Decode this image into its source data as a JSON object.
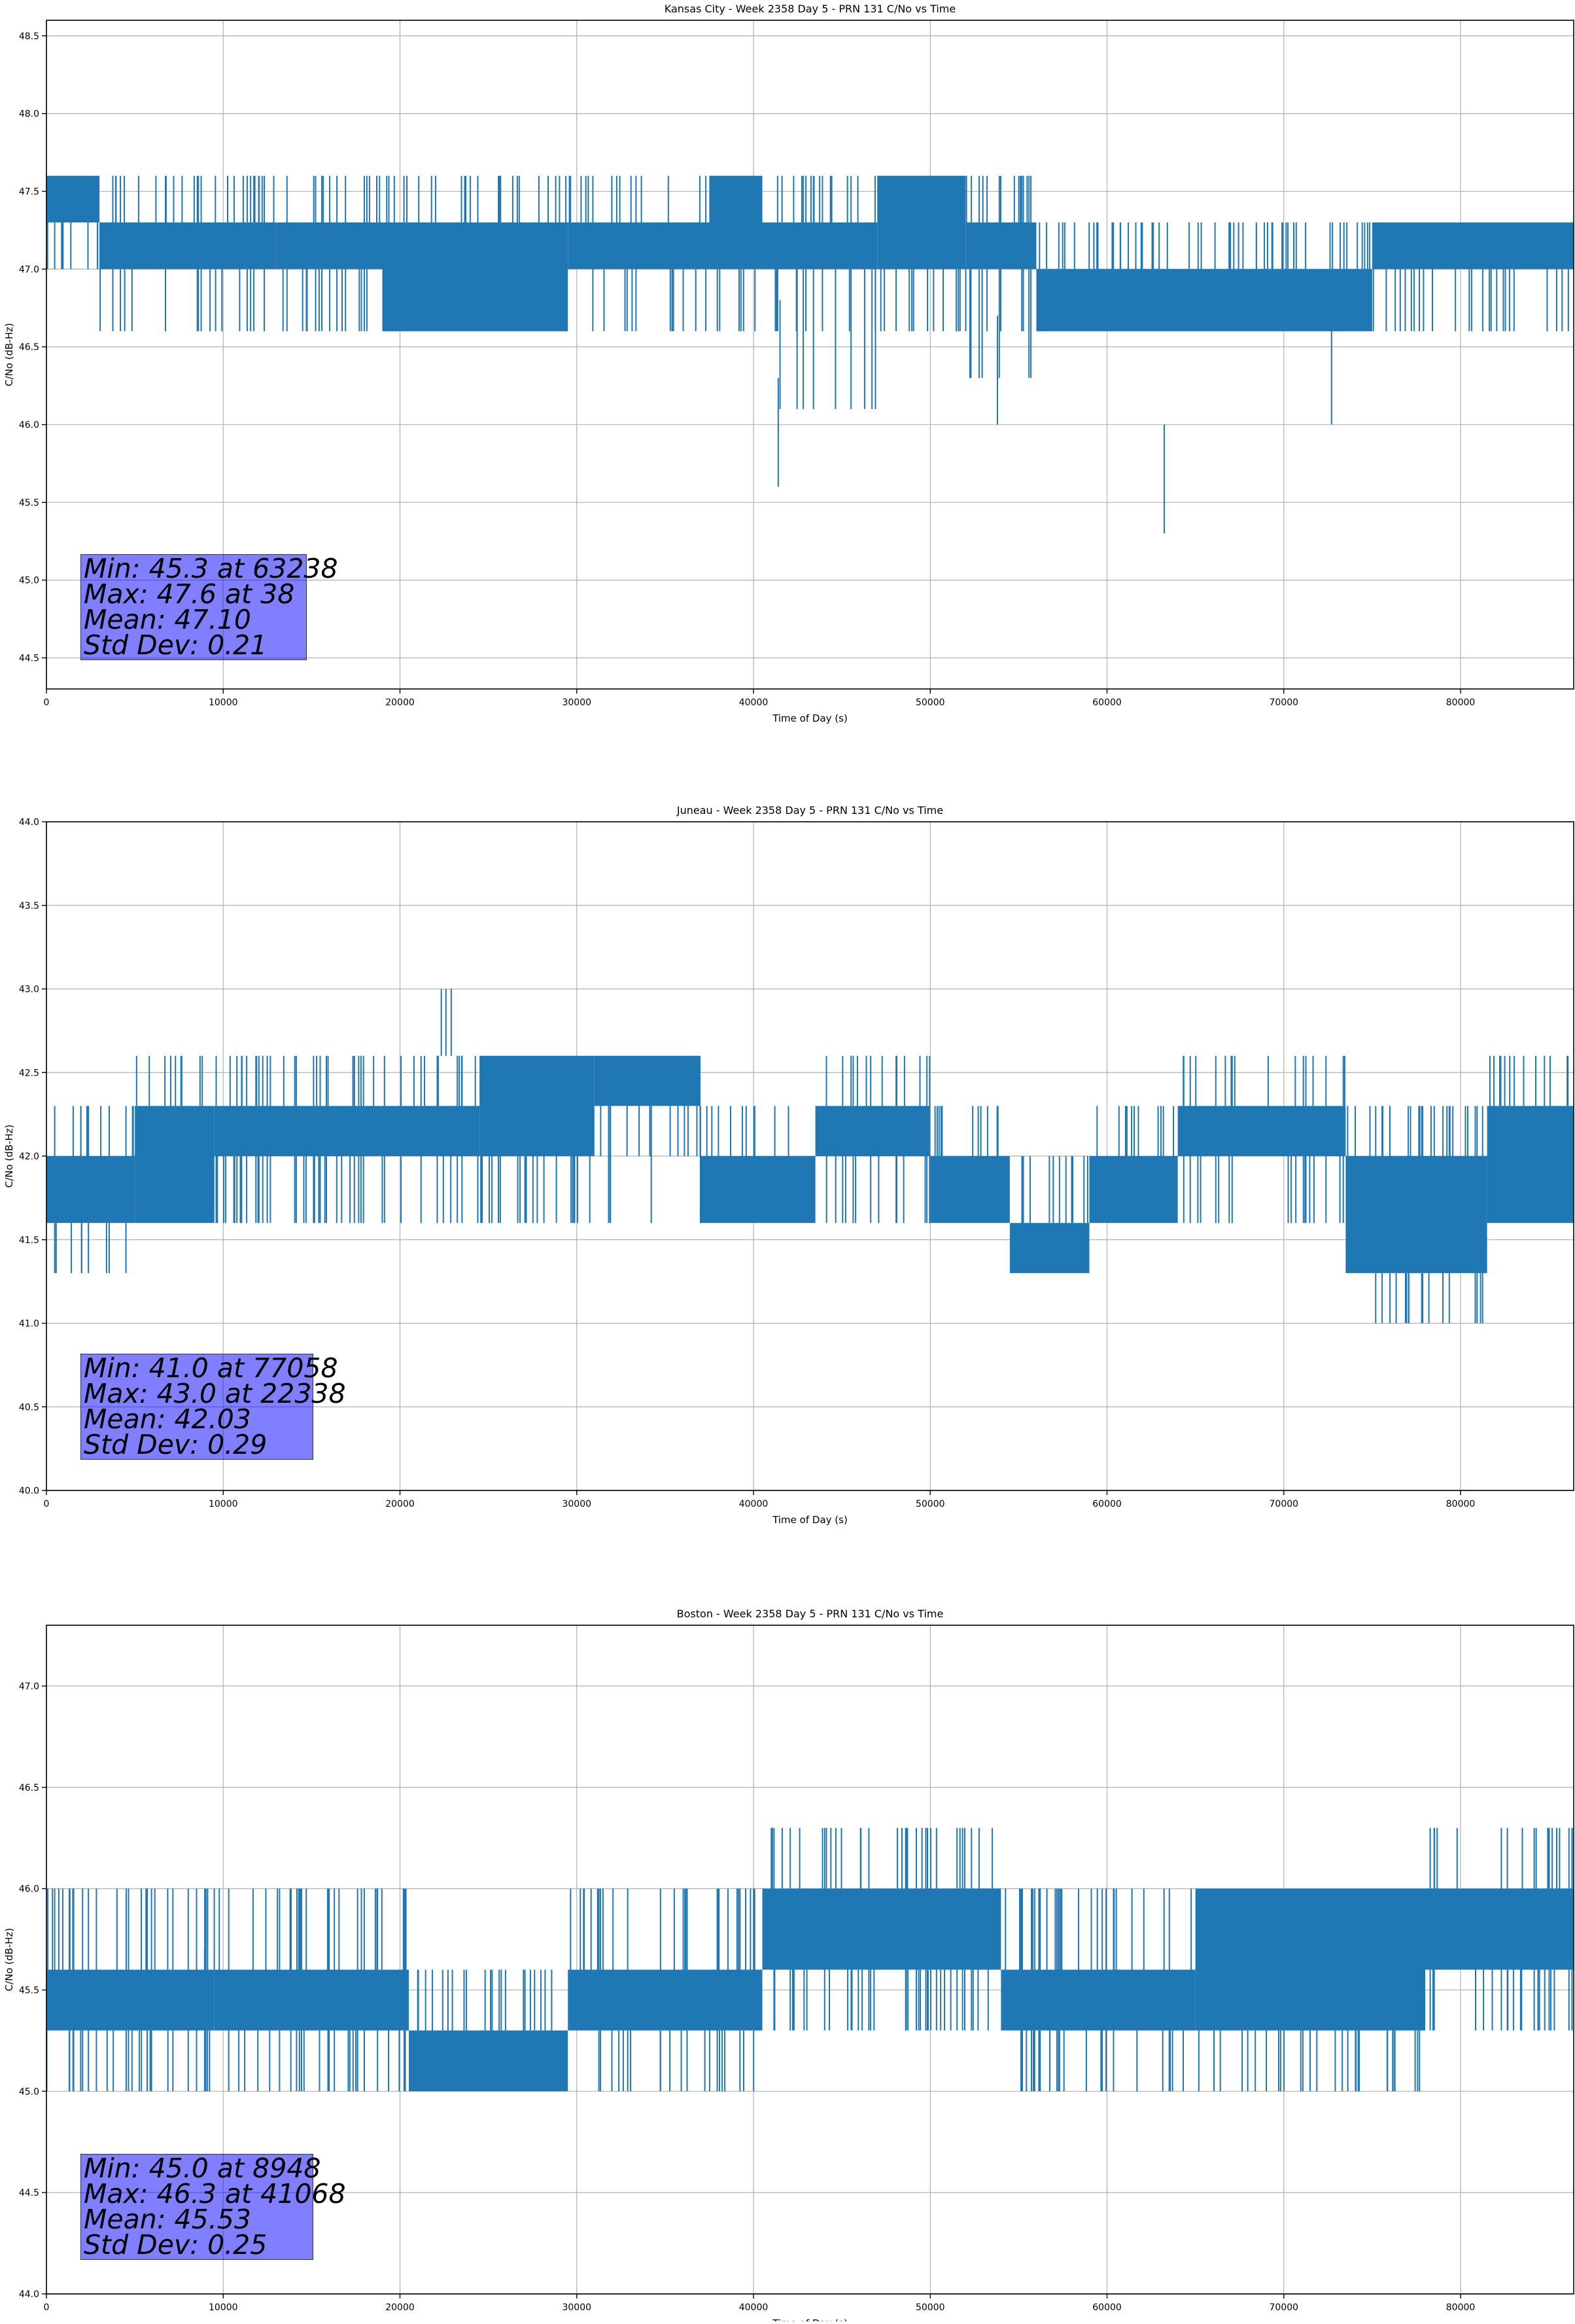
{
  "chart_data": [
    {
      "type": "line",
      "title": "Kansas City - Week 2358 Day 5 - PRN 131 C/No vs Time",
      "xlabel": "Time of Day (s)",
      "ylabel": "C/No (dB-Hz)",
      "xlim": [
        0,
        86400
      ],
      "ylim": [
        44.3,
        48.6
      ],
      "xticks": [
        0,
        10000,
        20000,
        30000,
        40000,
        50000,
        60000,
        70000,
        80000
      ],
      "yticks": [
        44.5,
        45.0,
        45.5,
        46.0,
        46.5,
        47.0,
        47.5,
        48.0,
        48.5
      ],
      "ytick_labels": [
        "44.5",
        "45.0",
        "45.5",
        "46.0",
        "46.5",
        "47.0",
        "47.5",
        "48.0",
        "48.5"
      ],
      "grid": true,
      "line_color": "#1f77b4",
      "quantum": 0.3,
      "segments": [
        {
          "x0": 0,
          "x1": 3000,
          "low": 47.3,
          "high": 47.6,
          "down": [
            47.0
          ],
          "up": []
        },
        {
          "x0": 3000,
          "x1": 13000,
          "low": 47.0,
          "high": 47.3,
          "down": [
            46.6
          ],
          "up": [
            47.6
          ]
        },
        {
          "x0": 13000,
          "x1": 19000,
          "low": 47.0,
          "high": 47.3,
          "down": [
            46.6
          ],
          "up": [
            47.6
          ]
        },
        {
          "x0": 19000,
          "x1": 29500,
          "low": 46.6,
          "high": 47.3,
          "down": [],
          "up": [
            47.6
          ]
        },
        {
          "x0": 29500,
          "x1": 37500,
          "low": 47.0,
          "high": 47.3,
          "down": [
            46.6
          ],
          "up": [
            47.6
          ]
        },
        {
          "x0": 37500,
          "x1": 40500,
          "low": 47.0,
          "high": 47.6,
          "down": [
            46.6
          ],
          "up": []
        },
        {
          "x0": 40500,
          "x1": 47000,
          "low": 47.0,
          "high": 47.3,
          "down": [
            46.6,
            46.1
          ],
          "up": [
            47.6
          ]
        },
        {
          "x0": 47000,
          "x1": 52000,
          "low": 47.0,
          "high": 47.6,
          "down": [
            46.6
          ],
          "up": []
        },
        {
          "x0": 52000,
          "x1": 56000,
          "low": 47.0,
          "high": 47.3,
          "down": [
            46.3,
            46.6
          ],
          "up": [
            47.6
          ]
        },
        {
          "x0": 56000,
          "x1": 75000,
          "low": 46.6,
          "high": 47.0,
          "down": [],
          "up": [
            47.3
          ]
        },
        {
          "x0": 75000,
          "x1": 86400,
          "low": 47.0,
          "high": 47.3,
          "down": [
            46.6
          ],
          "up": []
        }
      ],
      "spikes": [
        [
          41400,
          45.6
        ],
        [
          41500,
          46.1
        ],
        [
          53800,
          46.0
        ],
        [
          63238,
          45.3
        ],
        [
          72700,
          46.0
        ]
      ],
      "stats": {
        "min": "Min: 45.3 at 63238",
        "max": "Max: 47.6 at 38",
        "mean": "Mean: 47.10",
        "std": "Std Dev: 0.21"
      }
    },
    {
      "type": "line",
      "title": "Juneau - Week 2358 Day 5 - PRN 131 C/No vs Time",
      "xlabel": "Time of Day (s)",
      "ylabel": "C/No (dB-Hz)",
      "xlim": [
        0,
        86400
      ],
      "ylim": [
        40.0,
        44.0
      ],
      "xticks": [
        0,
        10000,
        20000,
        30000,
        40000,
        50000,
        60000,
        70000,
        80000
      ],
      "yticks": [
        40.0,
        40.5,
        41.0,
        41.5,
        42.0,
        42.5,
        43.0,
        43.5,
        44.0
      ],
      "ytick_labels": [
        "40.0",
        "40.5",
        "41.0",
        "41.5",
        "42.0",
        "42.5",
        "43.0",
        "43.5",
        "44.0"
      ],
      "grid": true,
      "line_color": "#1f77b4",
      "quantum": 0.3,
      "segments": [
        {
          "x0": 0,
          "x1": 5000,
          "low": 41.6,
          "high": 42.0,
          "down": [
            41.3
          ],
          "up": [
            42.3
          ]
        },
        {
          "x0": 5000,
          "x1": 9500,
          "low": 41.6,
          "high": 42.3,
          "down": [],
          "up": [
            42.6
          ]
        },
        {
          "x0": 9500,
          "x1": 24500,
          "low": 42.0,
          "high": 42.3,
          "down": [
            41.6
          ],
          "up": [
            42.6
          ]
        },
        {
          "x0": 24500,
          "x1": 31000,
          "low": 42.0,
          "high": 42.6,
          "down": [
            41.6
          ],
          "up": []
        },
        {
          "x0": 31000,
          "x1": 37000,
          "low": 42.3,
          "high": 42.6,
          "down": [
            42.0,
            41.6
          ],
          "up": []
        },
        {
          "x0": 37000,
          "x1": 43500,
          "low": 41.6,
          "high": 42.0,
          "down": [],
          "up": [
            42.3
          ]
        },
        {
          "x0": 43500,
          "x1": 50000,
          "low": 42.0,
          "high": 42.3,
          "down": [
            41.6
          ],
          "up": [
            42.6
          ]
        },
        {
          "x0": 50000,
          "x1": 54500,
          "low": 41.6,
          "high": 42.0,
          "down": [],
          "up": [
            42.3
          ]
        },
        {
          "x0": 54500,
          "x1": 59000,
          "low": 41.3,
          "high": 41.6,
          "down": [],
          "up": [
            42.0
          ]
        },
        {
          "x0": 59000,
          "x1": 64000,
          "low": 41.6,
          "high": 42.0,
          "down": [],
          "up": [
            42.3
          ]
        },
        {
          "x0": 64000,
          "x1": 73500,
          "low": 42.0,
          "high": 42.3,
          "down": [
            41.6
          ],
          "up": [
            42.6
          ]
        },
        {
          "x0": 73500,
          "x1": 81500,
          "low": 41.3,
          "high": 42.0,
          "down": [
            41.0
          ],
          "up": [
            42.3
          ]
        },
        {
          "x0": 81500,
          "x1": 86400,
          "low": 41.6,
          "high": 42.3,
          "down": [],
          "up": [
            42.6
          ]
        }
      ],
      "spikes": [
        [
          22338,
          43.0
        ],
        [
          22600,
          43.0
        ],
        [
          22900,
          43.0
        ],
        [
          77058,
          41.0
        ],
        [
          79000,
          41.0
        ]
      ],
      "stats": {
        "min": "Min: 41.0 at 77058",
        "max": "Max: 43.0 at 22338",
        "mean": "Mean: 42.03",
        "std": "Std Dev: 0.29"
      }
    },
    {
      "type": "line",
      "title": "Boston - Week 2358 Day 5 - PRN 131 C/No vs Time",
      "xlabel": "Time of Day (s)",
      "ylabel": "C/No (dB-Hz)",
      "xlim": [
        0,
        86400
      ],
      "ylim": [
        44.0,
        47.3
      ],
      "xticks": [
        0,
        10000,
        20000,
        30000,
        40000,
        50000,
        60000,
        70000,
        80000
      ],
      "yticks": [
        44.0,
        44.5,
        45.0,
        45.5,
        46.0,
        46.5,
        47.0
      ],
      "ytick_labels": [
        "44.0",
        "44.5",
        "45.0",
        "45.5",
        "46.0",
        "46.5",
        "47.0"
      ],
      "grid": true,
      "line_color": "#1f77b4",
      "quantum": 0.3,
      "segments": [
        {
          "x0": 0,
          "x1": 9500,
          "low": 45.3,
          "high": 45.6,
          "down": [
            45.0
          ],
          "up": [
            46.0
          ]
        },
        {
          "x0": 9500,
          "x1": 20500,
          "low": 45.3,
          "high": 45.6,
          "down": [
            45.0
          ],
          "up": [
            46.0
          ]
        },
        {
          "x0": 20500,
          "x1": 29500,
          "low": 45.0,
          "high": 45.3,
          "down": [],
          "up": [
            45.6
          ]
        },
        {
          "x0": 29500,
          "x1": 40500,
          "low": 45.3,
          "high": 45.6,
          "down": [
            45.0
          ],
          "up": [
            46.0
          ]
        },
        {
          "x0": 40500,
          "x1": 54000,
          "low": 45.6,
          "high": 46.0,
          "down": [
            45.3
          ],
          "up": [
            46.3
          ]
        },
        {
          "x0": 54000,
          "x1": 65000,
          "low": 45.3,
          "high": 45.6,
          "down": [
            45.0
          ],
          "up": [
            46.0
          ]
        },
        {
          "x0": 65000,
          "x1": 78000,
          "low": 45.3,
          "high": 46.0,
          "down": [
            45.0
          ],
          "up": []
        },
        {
          "x0": 78000,
          "x1": 86400,
          "low": 45.6,
          "high": 46.0,
          "down": [
            45.3
          ],
          "up": [
            46.3
          ]
        }
      ],
      "spikes": [
        [
          8948,
          45.0
        ],
        [
          41068,
          46.3
        ],
        [
          85600,
          46.3
        ]
      ],
      "stats": {
        "min": "Min: 45.0 at 8948",
        "max": "Max: 46.3 at 41068",
        "mean": "Mean: 45.53",
        "std": "Std Dev: 0.25"
      }
    }
  ]
}
